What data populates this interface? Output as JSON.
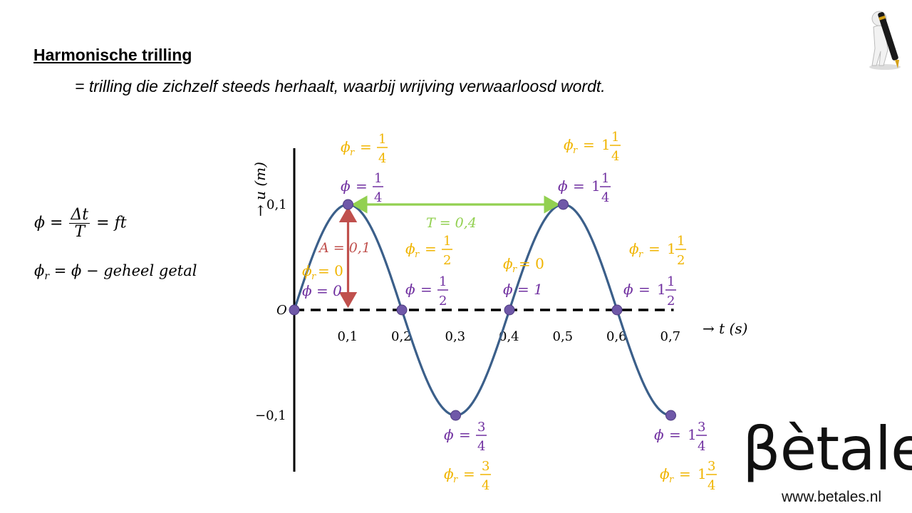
{
  "slide": {
    "title": "Harmonische trilling",
    "definition": "= trilling die zichzelf steeds herhaalt, waarbij wrijving verwaarloosd wordt."
  },
  "formulas": {
    "phi_lhs": "ϕ = ",
    "phi_num": "Δt",
    "phi_den": "T",
    "phi_rhs": " = ft",
    "phir": "ϕ",
    "phir_sub": "r",
    "phir_rhs": " = ϕ − geheel getal"
  },
  "logo": {
    "brand": "βètales",
    "url": "www.betales.nl"
  },
  "colors": {
    "curve": "#3b5f8a",
    "point": "#6f58a8",
    "phase_label": "#7030a0",
    "phase_r_label": "#f0b400",
    "period_arrow": "#92d050",
    "amplitude_arrow": "#c0504d",
    "axis": "#000000"
  },
  "chart_data": {
    "type": "line",
    "xlabel": "→ t (s)",
    "ylabel": "→ u (m)",
    "xlim": [
      0,
      0.7
    ],
    "ylim": [
      -0.1,
      0.1
    ],
    "origin_label": "O",
    "x_ticks": [
      {
        "value": 0.1,
        "label": "0,1"
      },
      {
        "value": 0.2,
        "label": "0,2"
      },
      {
        "value": 0.3,
        "label": "0,3"
      },
      {
        "value": 0.4,
        "label": "0,4"
      },
      {
        "value": 0.5,
        "label": "0,5"
      },
      {
        "value": 0.6,
        "label": "0,6"
      },
      {
        "value": 0.7,
        "label": "0,7"
      }
    ],
    "y_ticks": [
      {
        "value": 0.1,
        "label": "0,1"
      },
      {
        "value": -0.1,
        "label": "−0,1"
      }
    ],
    "amplitude": 0.1,
    "period": 0.4,
    "curve_t_end": 0.7,
    "points": [
      {
        "t": 0,
        "u": 0
      },
      {
        "t": 0.1,
        "u": 0.1
      },
      {
        "t": 0.2,
        "u": 0
      },
      {
        "t": 0.3,
        "u": -0.1
      },
      {
        "t": 0.4,
        "u": 0
      },
      {
        "t": 0.5,
        "u": 0.1
      },
      {
        "t": 0.6,
        "u": 0
      },
      {
        "t": 0.7,
        "u": -0.1
      }
    ],
    "annotations": {
      "period": "T = 0,4",
      "amplitude": "A = 0,1"
    },
    "phase_labels": [
      {
        "t": 0,
        "phi": "ϕ  = 0",
        "phi_r": "ϕr = 0"
      },
      {
        "t": 0.1,
        "phi_whole": "",
        "phi_num": "1",
        "phi_den": "4",
        "phir_num": "1",
        "phir_den": "4"
      },
      {
        "t": 0.2,
        "phi_whole": "",
        "phi_num": "1",
        "phi_den": "2",
        "phir_num": "1",
        "phir_den": "2"
      },
      {
        "t": 0.3,
        "phi_whole": "",
        "phi_num": "3",
        "phi_den": "4",
        "phir_num": "3",
        "phir_den": "4"
      },
      {
        "t": 0.4,
        "phi": "ϕ = 1",
        "phi_r": "ϕr = 0"
      },
      {
        "t": 0.5,
        "phi_whole": "1",
        "phi_num": "1",
        "phi_den": "4",
        "phir_num": "1",
        "phir_den": "4"
      },
      {
        "t": 0.6,
        "phi_whole": "1",
        "phi_num": "1",
        "phi_den": "2",
        "phir_num": "1",
        "phir_den": "2"
      },
      {
        "t": 0.7,
        "phi_whole": "1",
        "phi_num": "3",
        "phi_den": "4",
        "phir_num": "3",
        "phir_den": "4"
      }
    ]
  }
}
